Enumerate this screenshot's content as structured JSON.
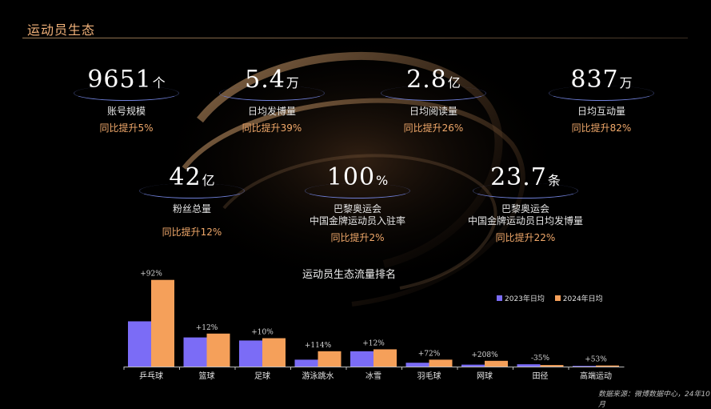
{
  "header": {
    "title": "运动员生态"
  },
  "stats": [
    {
      "value": "9651",
      "unit": "个",
      "label": "账号规模",
      "growth": "同比提升5%"
    },
    {
      "value": "5.4",
      "unit": "万",
      "label": "日均发博量",
      "growth": "同比提升39%"
    },
    {
      "value": "2.8",
      "unit": "亿",
      "label": "日均阅读量",
      "growth": "同比提升26%"
    },
    {
      "value": "837",
      "unit": "万",
      "label": "日均互动量",
      "growth": "同比提升82%"
    },
    {
      "value": "42",
      "unit": "亿",
      "label": "粉丝总量",
      "growth": "同比提升12%"
    },
    {
      "value": "100",
      "unit": "%",
      "label": "巴黎奥运会",
      "label2": "中国金牌运动员入驻率",
      "growth": "同比提升2%"
    },
    {
      "value": "23.7",
      "unit": "条",
      "label": "巴黎奥运会",
      "label2": "中国金牌运动员日均发博量",
      "growth": "同比提升22%"
    }
  ],
  "chart_data": {
    "type": "bar",
    "title": "运动员生态流量排名",
    "categories": [
      "乒乓球",
      "篮球",
      "足球",
      "游泳跳水",
      "冰雪",
      "羽毛球",
      "网球",
      "田径",
      "高端运动"
    ],
    "series": [
      {
        "name": "2023年日均",
        "color": "#7b6cf6",
        "values": [
          59,
          38,
          34,
          9,
          20,
          5,
          2.5,
          3,
          0.9
        ]
      },
      {
        "name": "2024年日均",
        "color": "#f5a05a",
        "values": [
          113,
          43,
          37,
          20,
          22.5,
          9,
          7.5,
          2,
          1.4
        ]
      }
    ],
    "annotations": [
      "+92%",
      "+12%",
      "+10%",
      "+114%",
      "+12%",
      "+72%",
      "+208%",
      "-35%",
      "+53%"
    ],
    "ylim": [
      0,
      120
    ],
    "legend": "top-right",
    "grid": false
  },
  "footer": {
    "source": "数据来源：微博数据中心，24年10月"
  }
}
